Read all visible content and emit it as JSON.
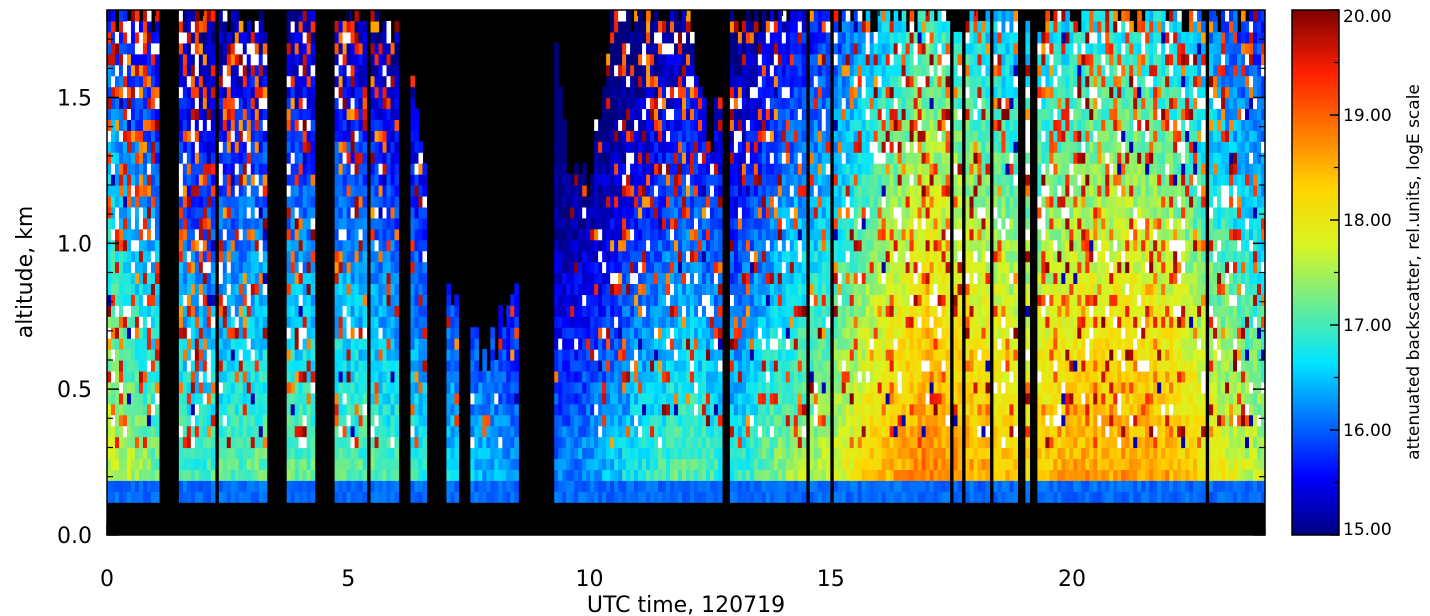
{
  "chart_data": {
    "type": "heatmap",
    "title": "",
    "xlabel": "UTC time, 120719",
    "ylabel": "altitude, km",
    "xlim": [
      0,
      24
    ],
    "ylim": [
      0,
      1.8
    ],
    "x_ticks": [
      "0",
      "5",
      "10",
      "15",
      "20"
    ],
    "y_ticks": [
      "0.0",
      "0.5",
      "1.0",
      "1.5"
    ],
    "colorbar": {
      "label": "attenuated backscatter, rel.units, logE scale",
      "range": [
        15,
        20
      ],
      "ticks": [
        "15.00",
        "16.00",
        "17.00",
        "18.00",
        "19.00",
        "20.00"
      ],
      "colormap": "rainbow (dark blue → cyan → yellow → red → dark red), white above max, black for no data"
    },
    "no_data_intervals_h": [
      [
        1.1,
        1.45
      ],
      [
        2.2,
        2.35
      ],
      [
        3.3,
        3.7
      ],
      [
        4.3,
        4.7
      ],
      [
        5.35,
        5.45
      ],
      [
        6.05,
        6.3
      ],
      [
        6.6,
        7.0
      ],
      [
        7.3,
        7.5
      ],
      [
        8.55,
        9.25
      ],
      [
        12.75,
        12.9
      ],
      [
        14.5,
        14.6
      ],
      [
        14.95,
        15.05
      ],
      [
        17.5,
        17.55
      ],
      [
        17.7,
        17.8
      ],
      [
        18.25,
        18.35
      ],
      [
        18.9,
        19.0
      ],
      [
        19.15,
        19.3
      ],
      [
        22.75,
        22.85
      ]
    ],
    "surface_blocked_below_km": 0.1,
    "ground_layer_km": [
      0.1,
      0.17
    ]
  }
}
